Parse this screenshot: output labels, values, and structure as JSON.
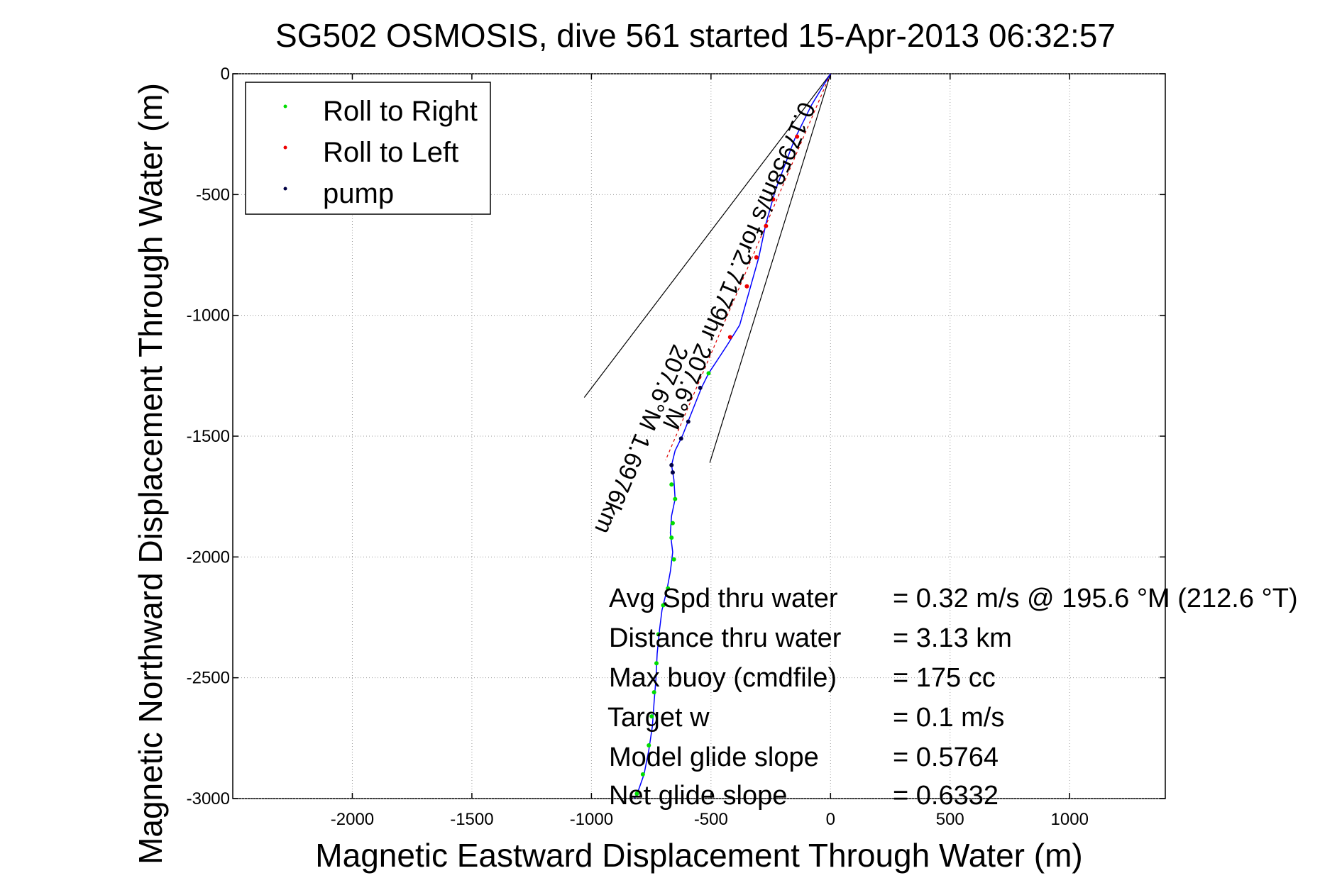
{
  "chart_data": {
    "type": "line",
    "title": "SG502 OSMOSIS, dive 561 started 15-Apr-2013 06:32:57",
    "xlabel": "Magnetic Eastward Displacement Through Water (m)",
    "ylabel": "Magnetic Northward Displacement Through Water (m)",
    "xlim": [
      -2500,
      1400
    ],
    "ylim": [
      -3000,
      0
    ],
    "xticks": [
      -2000,
      -1500,
      -1000,
      -500,
      0,
      500,
      1000
    ],
    "yticks": [
      0,
      -500,
      -1000,
      -1500,
      -2000,
      -2500,
      -3000
    ],
    "grid": true,
    "legend_position": "top-left",
    "legend": [
      {
        "label": "Roll to Right",
        "color": "#00dd00"
      },
      {
        "label": "Roll to Left",
        "color": "#ee0000"
      },
      {
        "label": "pump",
        "color": "#000044"
      }
    ],
    "track_color": "#0000ff",
    "track": [
      [
        0,
        0
      ],
      [
        -80,
        -130
      ],
      [
        -150,
        -270
      ],
      [
        -230,
        -480
      ],
      [
        -270,
        -620
      ],
      [
        -300,
        -760
      ],
      [
        -340,
        -900
      ],
      [
        -380,
        -1040
      ],
      [
        -430,
        -1120
      ],
      [
        -470,
        -1180
      ],
      [
        -510,
        -1240
      ],
      [
        -540,
        -1300
      ],
      [
        -580,
        -1400
      ],
      [
        -620,
        -1500
      ],
      [
        -650,
        -1560
      ],
      [
        -665,
        -1620
      ],
      [
        -655,
        -1680
      ],
      [
        -650,
        -1760
      ],
      [
        -665,
        -1830
      ],
      [
        -670,
        -1900
      ],
      [
        -660,
        -1980
      ],
      [
        -670,
        -2060
      ],
      [
        -685,
        -2140
      ],
      [
        -705,
        -2220
      ],
      [
        -715,
        -2300
      ],
      [
        -725,
        -2400
      ],
      [
        -730,
        -2500
      ],
      [
        -738,
        -2600
      ],
      [
        -745,
        -2700
      ],
      [
        -760,
        -2800
      ],
      [
        -780,
        -2900
      ],
      [
        -805,
        -2970
      ],
      [
        -820,
        -3000
      ]
    ],
    "roll_right_points": [
      [
        -510,
        -1240
      ],
      [
        -665,
        -1700
      ],
      [
        -650,
        -1760
      ],
      [
        -660,
        -1860
      ],
      [
        -665,
        -1920
      ],
      [
        -655,
        -2010
      ],
      [
        -680,
        -2130
      ],
      [
        -700,
        -2200
      ],
      [
        -720,
        -2320
      ],
      [
        -728,
        -2440
      ],
      [
        -738,
        -2560
      ],
      [
        -748,
        -2660
      ],
      [
        -760,
        -2780
      ],
      [
        -785,
        -2900
      ],
      [
        -810,
        -2980
      ]
    ],
    "roll_left_points": [
      [
        -240,
        -520
      ],
      [
        -270,
        -630
      ],
      [
        -310,
        -760
      ],
      [
        -350,
        -880
      ],
      [
        -420,
        -1090
      ],
      [
        -140,
        -260
      ]
    ],
    "pump_points": [
      [
        -545,
        -1300
      ],
      [
        -595,
        -1440
      ],
      [
        -625,
        -1510
      ],
      [
        -665,
        -1620
      ],
      [
        -660,
        -1650
      ]
    ],
    "lines": [
      {
        "from": [
          0,
          0
        ],
        "to": [
          -1030,
          -1340
        ]
      },
      {
        "from": [
          0,
          0
        ],
        "to": [
          -505,
          -1610
        ]
      },
      {
        "from": [
          0,
          0
        ],
        "to": [
          -690,
          -1600
        ],
        "color": "#dd0000",
        "dashed": true
      }
    ],
    "annotations": [
      {
        "text": "0.17958m/s for2.7179hr 207.6°M",
        "x": -125,
        "y": -110
      },
      {
        "text": "207.6°M 1.6976km",
        "x": -655,
        "y": -1115
      }
    ],
    "info_labels": [
      "Avg Spd thru water",
      "Distance thru water",
      "Max buoy (cmdfile)",
      "Target w",
      "Model glide slope",
      "Net glide slope"
    ],
    "info_values": [
      "=  0.32 m/s @ 195.6 °M (212.6 °T)",
      "=  3.13 km",
      "= 175 cc",
      "= 0.1 m/s",
      "= 0.5764",
      "= 0.6332"
    ]
  }
}
